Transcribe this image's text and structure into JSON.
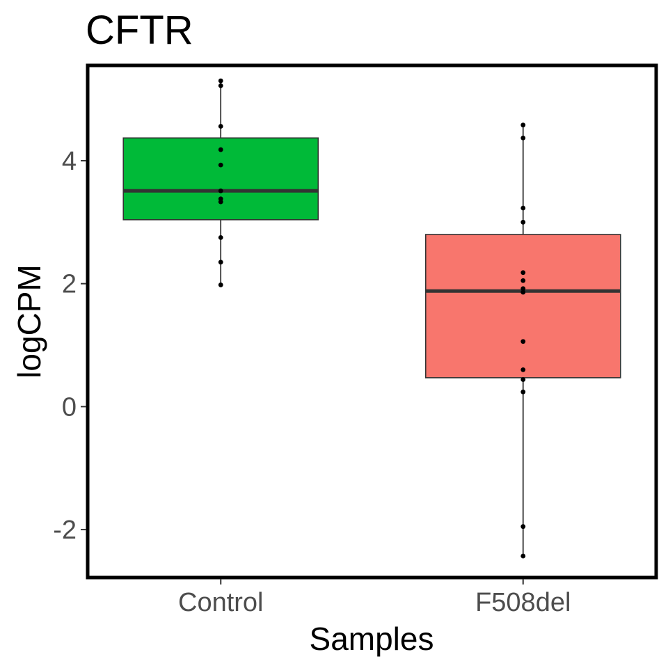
{
  "chart_data": {
    "type": "boxplot",
    "title": "CFTR",
    "xlabel": "Samples",
    "ylabel": "logCPM",
    "categories": [
      "Control",
      "F508del"
    ],
    "ylim": [
      -2.78,
      5.55
    ],
    "yticks": [
      -2,
      0,
      2,
      4
    ],
    "ytick_labels": [
      "-2",
      "0",
      "2",
      "4"
    ],
    "grid": false,
    "legend": "none",
    "boxes": [
      {
        "name": "Control",
        "color": "#00ba38",
        "whisker_low": 1.98,
        "q1": 3.04,
        "median": 3.51,
        "q3": 4.37,
        "whisker_high": 5.3,
        "points": [
          5.3,
          5.22,
          4.56,
          4.18,
          3.93,
          3.51,
          3.38,
          3.33,
          2.75,
          2.35,
          1.98
        ]
      },
      {
        "name": "F508del",
        "color": "#f8766d",
        "whisker_low": -2.43,
        "q1": 0.47,
        "median": 1.88,
        "q3": 2.8,
        "whisker_high": 4.58,
        "points": [
          4.58,
          4.37,
          3.23,
          3.0,
          2.18,
          2.05,
          1.92,
          1.86,
          1.06,
          0.6,
          0.44,
          0.24,
          -1.95,
          -2.43
        ]
      }
    ]
  }
}
